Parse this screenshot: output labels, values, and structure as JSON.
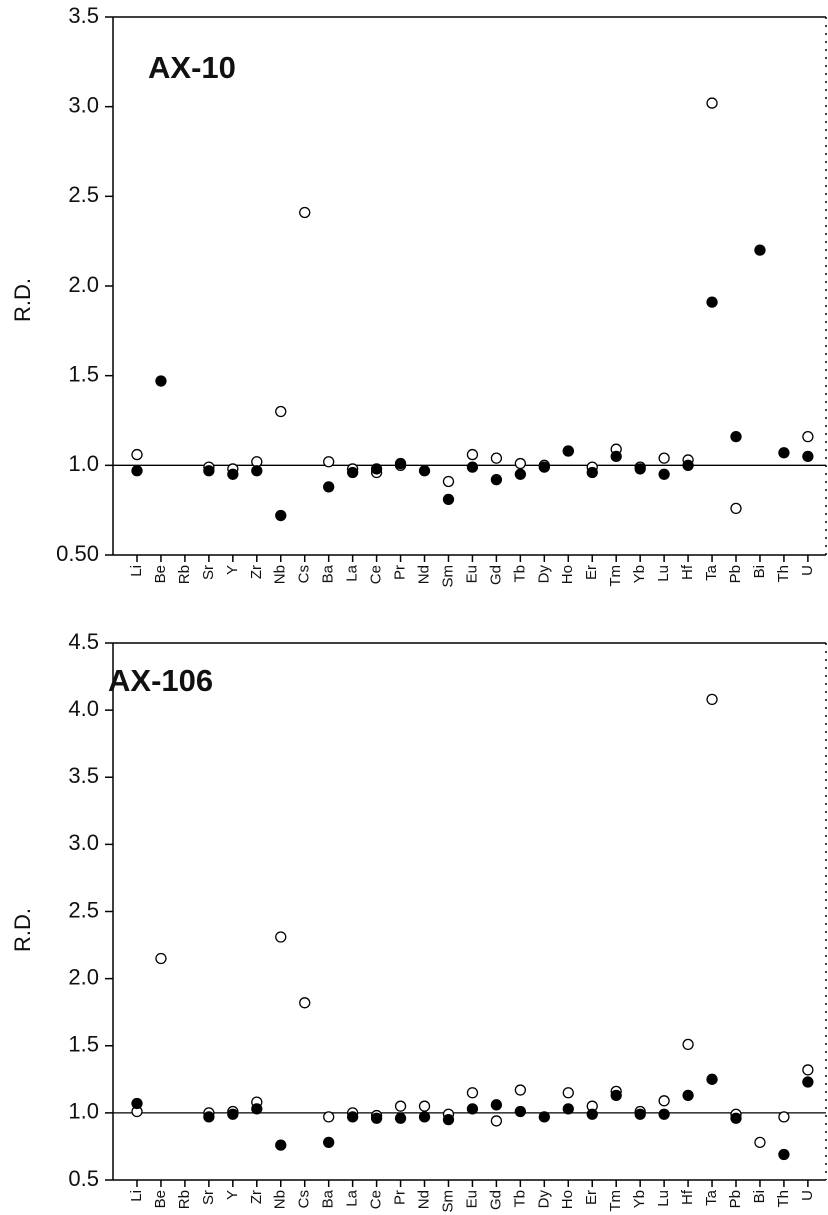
{
  "chart_data": [
    {
      "type": "scatter",
      "title": "AX-10",
      "y_label": "R.D.",
      "categories": [
        "Li",
        "Be",
        "Rb",
        "Sr",
        "Y",
        "Zr",
        "Nb",
        "Cs",
        "Ba",
        "La",
        "Ce",
        "Pr",
        "Nd",
        "Sm",
        "Eu",
        "Gd",
        "Tb",
        "Dy",
        "Ho",
        "Er",
        "Tm",
        "Yb",
        "Lu",
        "Hf",
        "Ta",
        "Pb",
        "Bi",
        "Th",
        "U"
      ],
      "ylim": [
        0.5,
        3.5
      ],
      "yticks": [
        {
          "value": 0.5,
          "label": "0.50"
        },
        {
          "value": 1,
          "label": "1.0"
        },
        1.5,
        {
          "value": 2,
          "label": "2.0"
        },
        2.5,
        {
          "value": 3,
          "label": "3.0"
        },
        3.5
      ],
      "reference_line": 1,
      "series": [
        {
          "color": "#000000",
          "filled": false,
          "values": [
            1.06,
            null,
            null,
            0.99,
            0.98,
            1.02,
            1.3,
            2.41,
            1.02,
            0.98,
            0.96,
            1.0,
            null,
            0.91,
            1.06,
            1.04,
            1.01,
            1.0,
            1.08,
            0.99,
            1.09,
            0.99,
            1.04,
            1.03,
            3.02,
            0.76,
            null,
            null,
            1.16
          ]
        },
        {
          "color": "#000000",
          "filled": true,
          "values": [
            0.97,
            1.47,
            null,
            0.97,
            0.95,
            0.97,
            0.72,
            null,
            0.88,
            0.96,
            0.98,
            1.01,
            0.97,
            0.81,
            0.99,
            0.92,
            0.95,
            0.99,
            1.08,
            0.96,
            1.05,
            0.98,
            0.95,
            1.0,
            1.91,
            1.16,
            2.2,
            1.07,
            1.05
          ]
        }
      ]
    },
    {
      "type": "scatter",
      "title": "AX-106",
      "y_label": "R.D.",
      "categories": [
        "Li",
        "Be",
        "Rb",
        "Sr",
        "Y",
        "Zr",
        "Nb",
        "Cs",
        "Ba",
        "La",
        "Ce",
        "Pr",
        "Nd",
        "Sm",
        "Eu",
        "Gd",
        "Tb",
        "Dy",
        "Ho",
        "Er",
        "Tm",
        "Yb",
        "Lu",
        "Hf",
        "Ta",
        "Pb",
        "Bi",
        "Th",
        "U"
      ],
      "ylim": [
        0.5,
        4.5
      ],
      "yticks": [
        0.5,
        {
          "value": 1,
          "label": "1.0"
        },
        1.5,
        {
          "value": 2,
          "label": "2.0"
        },
        2.5,
        {
          "value": 3,
          "label": "3.0"
        },
        3.5,
        {
          "value": 4,
          "label": "4.0"
        },
        4.5
      ],
      "reference_line": 1,
      "series": [
        {
          "color": "#000000",
          "filled": false,
          "values": [
            1.01,
            2.15,
            null,
            1.0,
            1.01,
            1.08,
            2.31,
            1.82,
            0.97,
            1.0,
            0.98,
            1.05,
            1.05,
            0.99,
            1.15,
            0.94,
            1.17,
            null,
            1.15,
            1.05,
            1.16,
            1.01,
            1.09,
            1.51,
            4.08,
            0.99,
            0.78,
            0.97,
            1.32
          ]
        },
        {
          "color": "#000000",
          "filled": true,
          "values": [
            1.07,
            null,
            null,
            0.97,
            0.99,
            1.03,
            0.76,
            null,
            0.78,
            0.97,
            0.96,
            0.96,
            0.97,
            0.95,
            1.03,
            1.06,
            1.01,
            0.97,
            1.03,
            0.99,
            1.13,
            0.99,
            0.99,
            1.13,
            1.25,
            0.96,
            null,
            0.69,
            1.23
          ]
        }
      ]
    }
  ]
}
